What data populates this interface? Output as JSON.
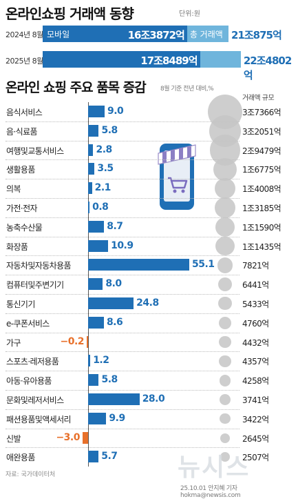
{
  "header": {
    "title": "온라인쇼핑 거래액 동향",
    "unit": "단위:원"
  },
  "summary": {
    "rows": [
      {
        "year": "2024년 8월",
        "mobile_label": "모바일",
        "mobile_value": "16조3872억",
        "total_label": "총 거래액",
        "total_value": "21조875억"
      },
      {
        "year": "2025년 8월",
        "mobile_label": "",
        "mobile_value": "17조8489억",
        "total_label": "",
        "total_value": "22조4802억"
      }
    ]
  },
  "colors": {
    "positive": "#1f6fb5",
    "negative": "#e8702a",
    "total": "#6fb5dc",
    "bubble": "#c6c6c6"
  },
  "section": {
    "title": "온라인 쇼핑 주요 품목 증감",
    "subtitle": "8월 기준 전년 대비,%",
    "volume_header": "거래액 규모"
  },
  "chart_data": {
    "type": "bar",
    "orientation": "horizontal",
    "categories": [
      "음식서비스",
      "음·식료품",
      "여행및교통서비스",
      "생활용품",
      "의복",
      "가전·전자",
      "농축수산물",
      "화장품",
      "자동차및자동차용품",
      "컴퓨터및주변기기",
      "통신기기",
      "e-쿠폰서비스",
      "가구",
      "스포츠·레저용품",
      "아동·유아용품",
      "문화및레저서비스",
      "패션용품및액세서리",
      "신발",
      "애완용품"
    ],
    "values": [
      9.0,
      5.8,
      2.8,
      3.5,
      2.1,
      0.8,
      8.7,
      10.9,
      55.1,
      8.0,
      24.8,
      8.6,
      -0.2,
      1.2,
      5.8,
      28.0,
      9.9,
      -3.0,
      5.7
    ],
    "value_labels": [
      "9.0",
      "5.8",
      "2.8",
      "3.5",
      "2.1",
      "0.8",
      "8.7",
      "10.9",
      "55.1",
      "8.0",
      "24.8",
      "8.6",
      "−0.2",
      "1.2",
      "5.8",
      "28.0",
      "9.9",
      "−3.0",
      "5.7"
    ],
    "volume_labels": [
      "3조7366억",
      "3조2051억",
      "2조9479억",
      "1조6775억",
      "1조4008억",
      "1조3185억",
      "1조1590억",
      "1조1435억",
      "7821억",
      "6441억",
      "5433억",
      "4760억",
      "4432억",
      "4357억",
      "4258억",
      "3741억",
      "3422억",
      "2645억",
      "2507억"
    ],
    "volume_billion_won": [
      37366,
      32051,
      29479,
      16775,
      14008,
      13185,
      11590,
      11435,
      7821,
      6441,
      5433,
      4760,
      4432,
      4357,
      4258,
      3741,
      3422,
      2645,
      2507
    ],
    "summary_series": [
      {
        "name": "모바일",
        "values_billion_won": [
          163872,
          178489
        ]
      },
      {
        "name": "총 거래액",
        "values_billion_won": [
          210875,
          224802
        ]
      }
    ],
    "summary_categories": [
      "2024년 8월",
      "2025년 8월"
    ],
    "title": "온라인 쇼핑 주요 품목 증감",
    "xlabel": "8월 기준 전년 대비,%",
    "ylabel": "",
    "grid": false
  },
  "footer": {
    "source": "자료: 국가데이터처",
    "credit": "25.10.01 안지혜 기자 hokma@newsis.com",
    "watermark": "뉴시스"
  }
}
